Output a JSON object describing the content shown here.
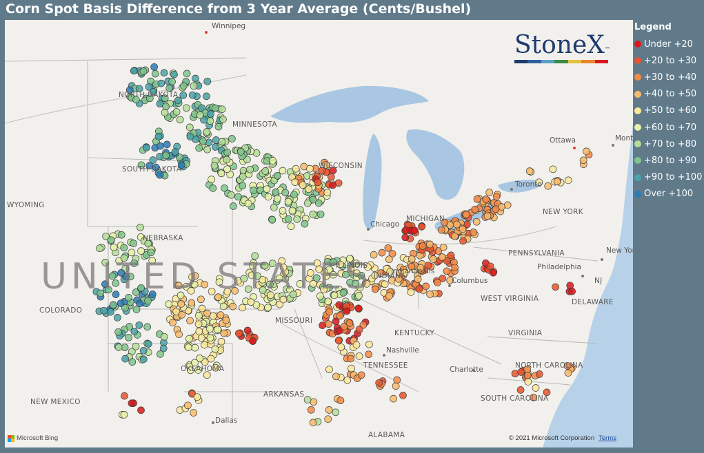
{
  "title": "Corn Spot Basis Difference from 3 Year Average (Cents/Bushel)",
  "legend": {
    "title": "Legend",
    "items": [
      {
        "label": "Under +20",
        "color": "#d7191c"
      },
      {
        "label": "+20 to +30",
        "color": "#e8552e"
      },
      {
        "label": "+30 to +40",
        "color": "#f38a45"
      },
      {
        "label": "+40 to +50",
        "color": "#f9bb6b"
      },
      {
        "label": "+50 to +60",
        "color": "#fbe89a"
      },
      {
        "label": "+60 to +70",
        "color": "#e6f2a6"
      },
      {
        "label": "+70 to +80",
        "color": "#b4de98"
      },
      {
        "label": "+80 to +90",
        "color": "#7fc48c"
      },
      {
        "label": "+90 to +100",
        "color": "#4aa3a8"
      },
      {
        "label": "Over +100",
        "color": "#2c7bb6"
      }
    ]
  },
  "logo": {
    "text": "StoneX",
    "tm": "™"
  },
  "map": {
    "country_label": "UNITED STATES",
    "state_labels": [
      "NORTH DAKOTA",
      "SOUTH DAKOTA",
      "MINNESOTA",
      "WYOMING",
      "NEBRASKA",
      "COLORADO",
      "MISSOURI",
      "KENTUCKY",
      "TENNESSEE",
      "OKLAHOMA",
      "ARKANSAS",
      "NEW MEXICO",
      "ALABAMA",
      "VIRGINIA",
      "WEST VIRGINIA",
      "PENNSYLVANIA",
      "NEW YORK",
      "NORTH CAROLINA",
      "SOUTH CAROLINA",
      "DELAWARE",
      "NJ",
      "MICHIGAN",
      "WISCONSIN",
      "INDIANA",
      "ILLINOIS"
    ],
    "city_labels": [
      "Winnipeg",
      "Ottawa",
      "Montreal",
      "Toronto",
      "Chicago",
      "Columbus",
      "Nashville",
      "Charlotte",
      "Dallas",
      "Philadelphia",
      "New York",
      "Indianapolis"
    ]
  },
  "attribution": {
    "bing": "Microsoft Bing",
    "copyright": "© 2021 Microsoft Corporation",
    "terms": "Terms"
  }
}
